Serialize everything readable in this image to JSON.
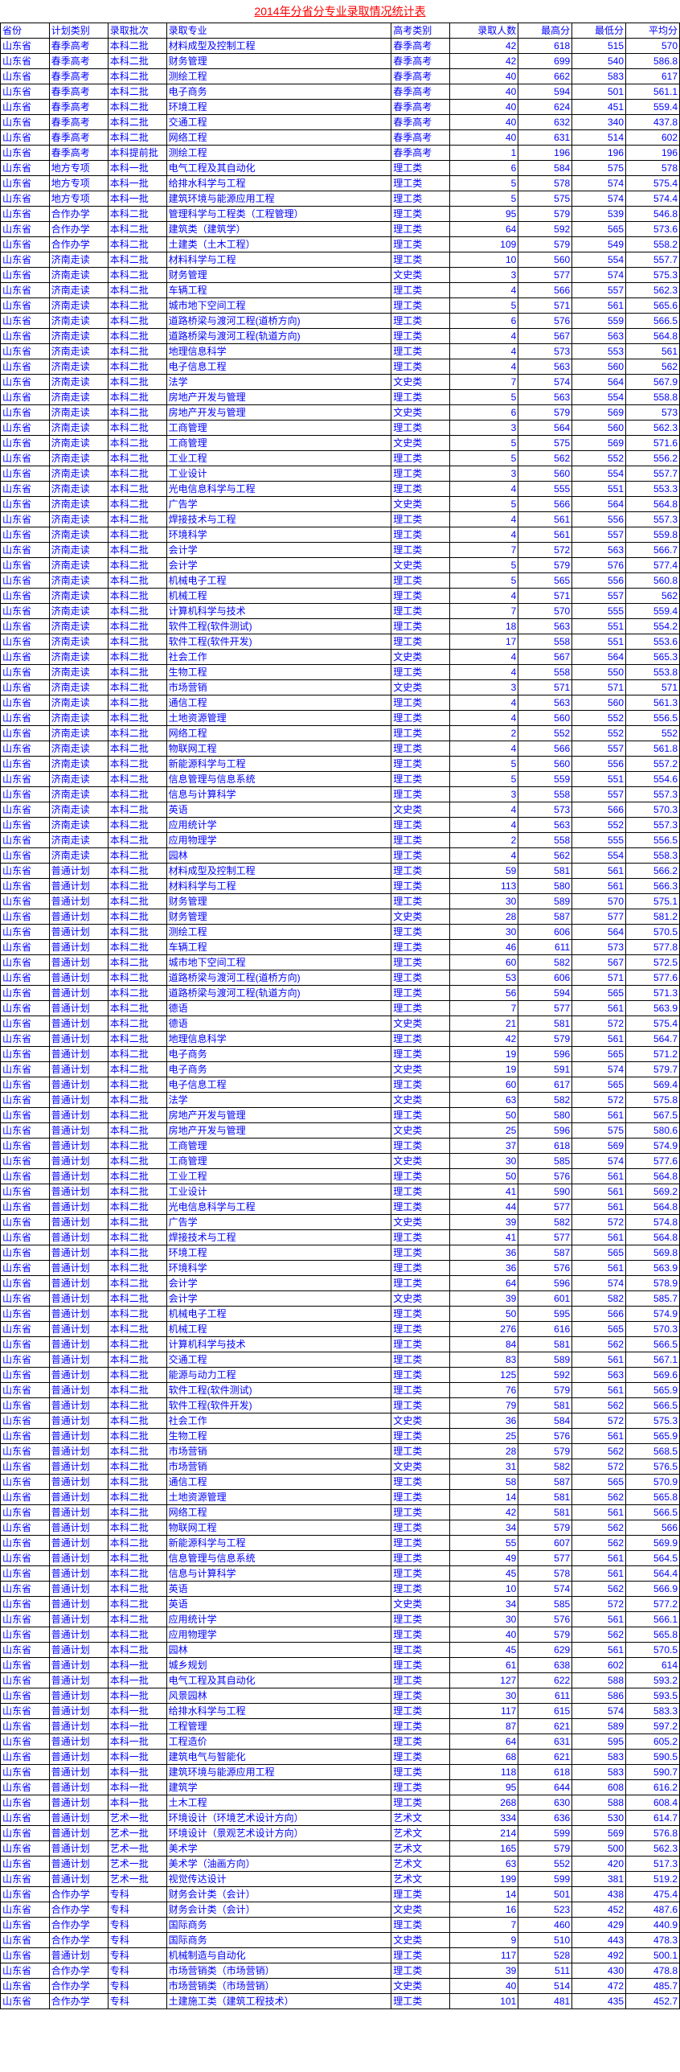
{
  "title": "2014年分省分专业录取情况统计表",
  "headers": [
    "省份",
    "计划类别",
    "录取批次",
    "录取专业",
    "高考类别",
    "录取人数",
    "最高分",
    "最低分",
    "平均分"
  ],
  "rows": [
    [
      "山东省",
      "春季高考",
      "本科二批",
      "材料成型及控制工程",
      "春季高考",
      "42",
      "618",
      "515",
      "570"
    ],
    [
      "山东省",
      "春季高考",
      "本科二批",
      "财务管理",
      "春季高考",
      "42",
      "699",
      "540",
      "586.8"
    ],
    [
      "山东省",
      "春季高考",
      "本科二批",
      "测绘工程",
      "春季高考",
      "40",
      "662",
      "583",
      "617"
    ],
    [
      "山东省",
      "春季高考",
      "本科二批",
      "电子商务",
      "春季高考",
      "40",
      "594",
      "501",
      "561.1"
    ],
    [
      "山东省",
      "春季高考",
      "本科二批",
      "环境工程",
      "春季高考",
      "40",
      "624",
      "451",
      "559.4"
    ],
    [
      "山东省",
      "春季高考",
      "本科二批",
      "交通工程",
      "春季高考",
      "40",
      "632",
      "340",
      "437.8"
    ],
    [
      "山东省",
      "春季高考",
      "本科二批",
      "网络工程",
      "春季高考",
      "40",
      "631",
      "514",
      "602"
    ],
    [
      "山东省",
      "春季高考",
      "本科提前批",
      "测绘工程",
      "春季高考",
      "1",
      "196",
      "196",
      "196"
    ],
    [
      "山东省",
      "地方专项",
      "本科一批",
      "电气工程及其自动化",
      "理工类",
      "6",
      "584",
      "575",
      "578"
    ],
    [
      "山东省",
      "地方专项",
      "本科一批",
      "给排水科学与工程",
      "理工类",
      "5",
      "578",
      "574",
      "575.4"
    ],
    [
      "山东省",
      "地方专项",
      "本科一批",
      "建筑环境与能源应用工程",
      "理工类",
      "5",
      "575",
      "574",
      "574.4"
    ],
    [
      "山东省",
      "合作办学",
      "本科二批",
      "管理科学与工程类（工程管理）",
      "理工类",
      "95",
      "579",
      "539",
      "546.8"
    ],
    [
      "山东省",
      "合作办学",
      "本科二批",
      "建筑类（建筑学）",
      "理工类",
      "64",
      "592",
      "565",
      "573.6"
    ],
    [
      "山东省",
      "合作办学",
      "本科二批",
      "土建类（土木工程）",
      "理工类",
      "109",
      "579",
      "549",
      "558.2"
    ],
    [
      "山东省",
      "济南走读",
      "本科二批",
      "材料科学与工程",
      "理工类",
      "10",
      "560",
      "554",
      "557.7"
    ],
    [
      "山东省",
      "济南走读",
      "本科二批",
      "财务管理",
      "文史类",
      "3",
      "577",
      "574",
      "575.3"
    ],
    [
      "山东省",
      "济南走读",
      "本科二批",
      "车辆工程",
      "理工类",
      "4",
      "566",
      "557",
      "562.3"
    ],
    [
      "山东省",
      "济南走读",
      "本科二批",
      "城市地下空间工程",
      "理工类",
      "5",
      "571",
      "561",
      "565.6"
    ],
    [
      "山东省",
      "济南走读",
      "本科二批",
      "道路桥梁与渡河工程(道桥方向)",
      "理工类",
      "6",
      "576",
      "559",
      "566.5"
    ],
    [
      "山东省",
      "济南走读",
      "本科二批",
      "道路桥梁与渡河工程(轨道方向)",
      "理工类",
      "4",
      "567",
      "563",
      "564.8"
    ],
    [
      "山东省",
      "济南走读",
      "本科二批",
      "地理信息科学",
      "理工类",
      "4",
      "573",
      "553",
      "561"
    ],
    [
      "山东省",
      "济南走读",
      "本科二批",
      "电子信息工程",
      "理工类",
      "4",
      "563",
      "560",
      "562"
    ],
    [
      "山东省",
      "济南走读",
      "本科二批",
      "法学",
      "文史类",
      "7",
      "574",
      "564",
      "567.9"
    ],
    [
      "山东省",
      "济南走读",
      "本科二批",
      "房地产开发与管理",
      "理工类",
      "5",
      "563",
      "554",
      "558.8"
    ],
    [
      "山东省",
      "济南走读",
      "本科二批",
      "房地产开发与管理",
      "文史类",
      "6",
      "579",
      "569",
      "573"
    ],
    [
      "山东省",
      "济南走读",
      "本科二批",
      "工商管理",
      "理工类",
      "3",
      "564",
      "560",
      "562.3"
    ],
    [
      "山东省",
      "济南走读",
      "本科二批",
      "工商管理",
      "文史类",
      "5",
      "575",
      "569",
      "571.6"
    ],
    [
      "山东省",
      "济南走读",
      "本科二批",
      "工业工程",
      "理工类",
      "5",
      "562",
      "552",
      "556.2"
    ],
    [
      "山东省",
      "济南走读",
      "本科二批",
      "工业设计",
      "理工类",
      "3",
      "560",
      "554",
      "557.7"
    ],
    [
      "山东省",
      "济南走读",
      "本科二批",
      "光电信息科学与工程",
      "理工类",
      "4",
      "555",
      "551",
      "553.3"
    ],
    [
      "山东省",
      "济南走读",
      "本科二批",
      "广告学",
      "文史类",
      "5",
      "566",
      "564",
      "564.8"
    ],
    [
      "山东省",
      "济南走读",
      "本科二批",
      "焊接技术与工程",
      "理工类",
      "4",
      "561",
      "556",
      "557.3"
    ],
    [
      "山东省",
      "济南走读",
      "本科二批",
      "环境科学",
      "理工类",
      "4",
      "561",
      "557",
      "559.8"
    ],
    [
      "山东省",
      "济南走读",
      "本科二批",
      "会计学",
      "理工类",
      "7",
      "572",
      "563",
      "566.7"
    ],
    [
      "山东省",
      "济南走读",
      "本科二批",
      "会计学",
      "文史类",
      "5",
      "579",
      "576",
      "577.4"
    ],
    [
      "山东省",
      "济南走读",
      "本科二批",
      "机械电子工程",
      "理工类",
      "5",
      "565",
      "556",
      "560.8"
    ],
    [
      "山东省",
      "济南走读",
      "本科二批",
      "机械工程",
      "理工类",
      "4",
      "571",
      "557",
      "562"
    ],
    [
      "山东省",
      "济南走读",
      "本科二批",
      "计算机科学与技术",
      "理工类",
      "7",
      "570",
      "555",
      "559.4"
    ],
    [
      "山东省",
      "济南走读",
      "本科二批",
      "软件工程(软件测试)",
      "理工类",
      "18",
      "563",
      "551",
      "554.2"
    ],
    [
      "山东省",
      "济南走读",
      "本科二批",
      "软件工程(软件开发)",
      "理工类",
      "17",
      "558",
      "551",
      "553.6"
    ],
    [
      "山东省",
      "济南走读",
      "本科二批",
      "社会工作",
      "文史类",
      "4",
      "567",
      "564",
      "565.3"
    ],
    [
      "山东省",
      "济南走读",
      "本科二批",
      "生物工程",
      "理工类",
      "4",
      "558",
      "550",
      "553.8"
    ],
    [
      "山东省",
      "济南走读",
      "本科二批",
      "市场营销",
      "文史类",
      "3",
      "571",
      "571",
      "571"
    ],
    [
      "山东省",
      "济南走读",
      "本科二批",
      "通信工程",
      "理工类",
      "4",
      "563",
      "560",
      "561.3"
    ],
    [
      "山东省",
      "济南走读",
      "本科二批",
      "土地资源管理",
      "理工类",
      "4",
      "560",
      "552",
      "556.5"
    ],
    [
      "山东省",
      "济南走读",
      "本科二批",
      "网络工程",
      "理工类",
      "2",
      "552",
      "552",
      "552"
    ],
    [
      "山东省",
      "济南走读",
      "本科二批",
      "物联网工程",
      "理工类",
      "4",
      "566",
      "557",
      "561.8"
    ],
    [
      "山东省",
      "济南走读",
      "本科二批",
      "新能源科学与工程",
      "理工类",
      "5",
      "560",
      "556",
      "557.2"
    ],
    [
      "山东省",
      "济南走读",
      "本科二批",
      "信息管理与信息系统",
      "理工类",
      "5",
      "559",
      "551",
      "554.6"
    ],
    [
      "山东省",
      "济南走读",
      "本科二批",
      "信息与计算科学",
      "理工类",
      "3",
      "558",
      "557",
      "557.3"
    ],
    [
      "山东省",
      "济南走读",
      "本科二批",
      "英语",
      "文史类",
      "4",
      "573",
      "566",
      "570.3"
    ],
    [
      "山东省",
      "济南走读",
      "本科二批",
      "应用统计学",
      "理工类",
      "4",
      "563",
      "552",
      "557.3"
    ],
    [
      "山东省",
      "济南走读",
      "本科二批",
      "应用物理学",
      "理工类",
      "2",
      "558",
      "555",
      "556.5"
    ],
    [
      "山东省",
      "济南走读",
      "本科二批",
      "园林",
      "理工类",
      "4",
      "562",
      "554",
      "558.3"
    ],
    [
      "山东省",
      "普通计划",
      "本科二批",
      "材料成型及控制工程",
      "理工类",
      "59",
      "581",
      "561",
      "566.2"
    ],
    [
      "山东省",
      "普通计划",
      "本科二批",
      "材料科学与工程",
      "理工类",
      "113",
      "580",
      "561",
      "566.3"
    ],
    [
      "山东省",
      "普通计划",
      "本科二批",
      "财务管理",
      "理工类",
      "30",
      "589",
      "570",
      "575.1"
    ],
    [
      "山东省",
      "普通计划",
      "本科二批",
      "财务管理",
      "文史类",
      "28",
      "587",
      "577",
      "581.2"
    ],
    [
      "山东省",
      "普通计划",
      "本科二批",
      "测绘工程",
      "理工类",
      "30",
      "606",
      "564",
      "570.5"
    ],
    [
      "山东省",
      "普通计划",
      "本科二批",
      "车辆工程",
      "理工类",
      "46",
      "611",
      "573",
      "577.8"
    ],
    [
      "山东省",
      "普通计划",
      "本科二批",
      "城市地下空间工程",
      "理工类",
      "60",
      "582",
      "567",
      "572.5"
    ],
    [
      "山东省",
      "普通计划",
      "本科二批",
      "道路桥梁与渡河工程(道桥方向)",
      "理工类",
      "53",
      "606",
      "571",
      "577.6"
    ],
    [
      "山东省",
      "普通计划",
      "本科二批",
      "道路桥梁与渡河工程(轨道方向)",
      "理工类",
      "56",
      "594",
      "565",
      "571.3"
    ],
    [
      "山东省",
      "普通计划",
      "本科二批",
      "德语",
      "理工类",
      "7",
      "577",
      "561",
      "563.9"
    ],
    [
      "山东省",
      "普通计划",
      "本科二批",
      "德语",
      "文史类",
      "21",
      "581",
      "572",
      "575.4"
    ],
    [
      "山东省",
      "普通计划",
      "本科二批",
      "地理信息科学",
      "理工类",
      "42",
      "579",
      "561",
      "564.7"
    ],
    [
      "山东省",
      "普通计划",
      "本科二批",
      "电子商务",
      "理工类",
      "19",
      "596",
      "565",
      "571.2"
    ],
    [
      "山东省",
      "普通计划",
      "本科二批",
      "电子商务",
      "文史类",
      "19",
      "591",
      "574",
      "579.7"
    ],
    [
      "山东省",
      "普通计划",
      "本科二批",
      "电子信息工程",
      "理工类",
      "60",
      "617",
      "565",
      "569.4"
    ],
    [
      "山东省",
      "普通计划",
      "本科二批",
      "法学",
      "文史类",
      "63",
      "582",
      "572",
      "575.8"
    ],
    [
      "山东省",
      "普通计划",
      "本科二批",
      "房地产开发与管理",
      "理工类",
      "50",
      "580",
      "561",
      "567.5"
    ],
    [
      "山东省",
      "普通计划",
      "本科二批",
      "房地产开发与管理",
      "文史类",
      "25",
      "596",
      "575",
      "580.6"
    ],
    [
      "山东省",
      "普通计划",
      "本科二批",
      "工商管理",
      "理工类",
      "37",
      "618",
      "569",
      "574.9"
    ],
    [
      "山东省",
      "普通计划",
      "本科二批",
      "工商管理",
      "文史类",
      "30",
      "585",
      "574",
      "577.6"
    ],
    [
      "山东省",
      "普通计划",
      "本科二批",
      "工业工程",
      "理工类",
      "50",
      "576",
      "561",
      "564.8"
    ],
    [
      "山东省",
      "普通计划",
      "本科二批",
      "工业设计",
      "理工类",
      "41",
      "590",
      "561",
      "569.2"
    ],
    [
      "山东省",
      "普通计划",
      "本科二批",
      "光电信息科学与工程",
      "理工类",
      "44",
      "577",
      "561",
      "564.8"
    ],
    [
      "山东省",
      "普通计划",
      "本科二批",
      "广告学",
      "文史类",
      "39",
      "582",
      "572",
      "574.8"
    ],
    [
      "山东省",
      "普通计划",
      "本科二批",
      "焊接技术与工程",
      "理工类",
      "41",
      "577",
      "561",
      "564.8"
    ],
    [
      "山东省",
      "普通计划",
      "本科二批",
      "环境工程",
      "理工类",
      "36",
      "587",
      "565",
      "569.8"
    ],
    [
      "山东省",
      "普通计划",
      "本科二批",
      "环境科学",
      "理工类",
      "36",
      "576",
      "561",
      "563.9"
    ],
    [
      "山东省",
      "普通计划",
      "本科二批",
      "会计学",
      "理工类",
      "64",
      "596",
      "574",
      "578.9"
    ],
    [
      "山东省",
      "普通计划",
      "本科二批",
      "会计学",
      "文史类",
      "39",
      "601",
      "582",
      "585.7"
    ],
    [
      "山东省",
      "普通计划",
      "本科二批",
      "机械电子工程",
      "理工类",
      "50",
      "595",
      "566",
      "574.9"
    ],
    [
      "山东省",
      "普通计划",
      "本科二批",
      "机械工程",
      "理工类",
      "276",
      "616",
      "565",
      "570.3"
    ],
    [
      "山东省",
      "普通计划",
      "本科二批",
      "计算机科学与技术",
      "理工类",
      "84",
      "581",
      "562",
      "566.5"
    ],
    [
      "山东省",
      "普通计划",
      "本科二批",
      "交通工程",
      "理工类",
      "83",
      "589",
      "561",
      "567.1"
    ],
    [
      "山东省",
      "普通计划",
      "本科二批",
      "能源与动力工程",
      "理工类",
      "125",
      "592",
      "563",
      "569.6"
    ],
    [
      "山东省",
      "普通计划",
      "本科二批",
      "软件工程(软件测试)",
      "理工类",
      "76",
      "579",
      "561",
      "565.9"
    ],
    [
      "山东省",
      "普通计划",
      "本科二批",
      "软件工程(软件开发)",
      "理工类",
      "79",
      "581",
      "562",
      "566.5"
    ],
    [
      "山东省",
      "普通计划",
      "本科二批",
      "社会工作",
      "文史类",
      "36",
      "584",
      "572",
      "575.3"
    ],
    [
      "山东省",
      "普通计划",
      "本科二批",
      "生物工程",
      "理工类",
      "25",
      "576",
      "561",
      "565.9"
    ],
    [
      "山东省",
      "普通计划",
      "本科二批",
      "市场营销",
      "理工类",
      "28",
      "579",
      "562",
      "568.5"
    ],
    [
      "山东省",
      "普通计划",
      "本科二批",
      "市场营销",
      "文史类",
      "31",
      "582",
      "572",
      "576.5"
    ],
    [
      "山东省",
      "普通计划",
      "本科二批",
      "通信工程",
      "理工类",
      "58",
      "587",
      "565",
      "570.9"
    ],
    [
      "山东省",
      "普通计划",
      "本科二批",
      "土地资源管理",
      "理工类",
      "14",
      "581",
      "562",
      "565.8"
    ],
    [
      "山东省",
      "普通计划",
      "本科二批",
      "网络工程",
      "理工类",
      "42",
      "581",
      "561",
      "566.5"
    ],
    [
      "山东省",
      "普通计划",
      "本科二批",
      "物联网工程",
      "理工类",
      "34",
      "579",
      "562",
      "566"
    ],
    [
      "山东省",
      "普通计划",
      "本科二批",
      "新能源科学与工程",
      "理工类",
      "55",
      "607",
      "562",
      "569.9"
    ],
    [
      "山东省",
      "普通计划",
      "本科二批",
      "信息管理与信息系统",
      "理工类",
      "49",
      "577",
      "561",
      "564.5"
    ],
    [
      "山东省",
      "普通计划",
      "本科二批",
      "信息与计算科学",
      "理工类",
      "45",
      "578",
      "561",
      "564.4"
    ],
    [
      "山东省",
      "普通计划",
      "本科二批",
      "英语",
      "理工类",
      "10",
      "574",
      "562",
      "566.9"
    ],
    [
      "山东省",
      "普通计划",
      "本科二批",
      "英语",
      "文史类",
      "34",
      "585",
      "572",
      "577.2"
    ],
    [
      "山东省",
      "普通计划",
      "本科二批",
      "应用统计学",
      "理工类",
      "30",
      "576",
      "561",
      "566.1"
    ],
    [
      "山东省",
      "普通计划",
      "本科二批",
      "应用物理学",
      "理工类",
      "40",
      "579",
      "562",
      "565.8"
    ],
    [
      "山东省",
      "普通计划",
      "本科二批",
      "园林",
      "理工类",
      "45",
      "629",
      "561",
      "570.5"
    ],
    [
      "山东省",
      "普通计划",
      "本科一批",
      "城乡规划",
      "理工类",
      "61",
      "638",
      "602",
      "614"
    ],
    [
      "山东省",
      "普通计划",
      "本科一批",
      "电气工程及其自动化",
      "理工类",
      "127",
      "622",
      "588",
      "593.2"
    ],
    [
      "山东省",
      "普通计划",
      "本科一批",
      "风景园林",
      "理工类",
      "30",
      "611",
      "586",
      "593.5"
    ],
    [
      "山东省",
      "普通计划",
      "本科一批",
      "给排水科学与工程",
      "理工类",
      "117",
      "615",
      "574",
      "583.3"
    ],
    [
      "山东省",
      "普通计划",
      "本科一批",
      "工程管理",
      "理工类",
      "87",
      "621",
      "589",
      "597.2"
    ],
    [
      "山东省",
      "普通计划",
      "本科一批",
      "工程造价",
      "理工类",
      "64",
      "631",
      "595",
      "605.2"
    ],
    [
      "山东省",
      "普通计划",
      "本科一批",
      "建筑电气与智能化",
      "理工类",
      "68",
      "621",
      "583",
      "590.5"
    ],
    [
      "山东省",
      "普通计划",
      "本科一批",
      "建筑环境与能源应用工程",
      "理工类",
      "118",
      "618",
      "583",
      "590.7"
    ],
    [
      "山东省",
      "普通计划",
      "本科一批",
      "建筑学",
      "理工类",
      "95",
      "644",
      "608",
      "616.2"
    ],
    [
      "山东省",
      "普通计划",
      "本科一批",
      "土木工程",
      "理工类",
      "268",
      "630",
      "588",
      "608.4"
    ],
    [
      "山东省",
      "普通计划",
      "艺术一批",
      "环境设计（环境艺术设计方向）",
      "艺术文",
      "334",
      "636",
      "530",
      "614.7"
    ],
    [
      "山东省",
      "普通计划",
      "艺术一批",
      "环境设计（景观艺术设计方向）",
      "艺术文",
      "214",
      "599",
      "569",
      "576.8"
    ],
    [
      "山东省",
      "普通计划",
      "艺术一批",
      "美术学",
      "艺术文",
      "165",
      "579",
      "500",
      "562.3"
    ],
    [
      "山东省",
      "普通计划",
      "艺术一批",
      "美术学（油画方向）",
      "艺术文",
      "63",
      "552",
      "420",
      "517.3"
    ],
    [
      "山东省",
      "普通计划",
      "艺术一批",
      "视觉传达设计",
      "艺术文",
      "199",
      "599",
      "381",
      "519.2"
    ],
    [
      "山东省",
      "合作办学",
      "专科",
      "财务会计类（会计）",
      "理工类",
      "14",
      "501",
      "438",
      "475.4"
    ],
    [
      "山东省",
      "合作办学",
      "专科",
      "财务会计类（会计）",
      "文史类",
      "16",
      "523",
      "452",
      "487.6"
    ],
    [
      "山东省",
      "合作办学",
      "专科",
      "国际商务",
      "理工类",
      "7",
      "460",
      "429",
      "440.9"
    ],
    [
      "山东省",
      "合作办学",
      "专科",
      "国际商务",
      "文史类",
      "9",
      "510",
      "443",
      "478.3"
    ],
    [
      "山东省",
      "普通计划",
      "专科",
      "机械制造与自动化",
      "理工类",
      "117",
      "528",
      "492",
      "500.1"
    ],
    [
      "山东省",
      "合作办学",
      "专科",
      "市场营销类（市场营销）",
      "理工类",
      "39",
      "511",
      "430",
      "478.8"
    ],
    [
      "山东省",
      "合作办学",
      "专科",
      "市场营销类（市场营销）",
      "文史类",
      "40",
      "514",
      "472",
      "485.7"
    ],
    [
      "山东省",
      "合作办学",
      "专科",
      "土建施工类（建筑工程技术）",
      "理工类",
      "101",
      "481",
      "435",
      "452.7"
    ]
  ]
}
